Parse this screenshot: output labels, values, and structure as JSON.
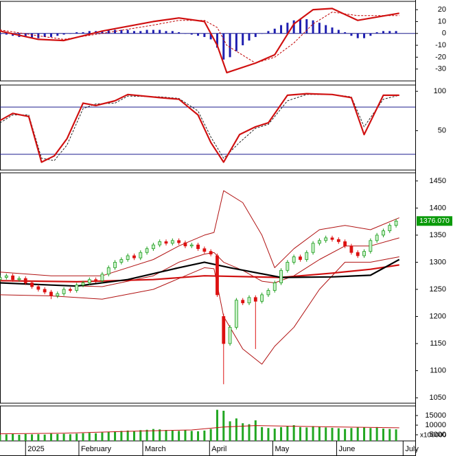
{
  "chart_data": [
    {
      "type": "macd",
      "xlim": [
        0,
        130
      ],
      "ylim": [
        -40,
        27
      ],
      "yticks": [
        20,
        10,
        0,
        -10,
        -20,
        -30
      ],
      "zero_line": true,
      "series": [
        {
          "style": "bar",
          "color": "#1f1fb0",
          "x": [
            0,
            2,
            4,
            6,
            8,
            10,
            12,
            14,
            16,
            18,
            20,
            22,
            24,
            26,
            28,
            30,
            32,
            34,
            36,
            38,
            40,
            42,
            44,
            46,
            48,
            50,
            52,
            54,
            56,
            58,
            60,
            62,
            64,
            66,
            68,
            70,
            72,
            74,
            76,
            78,
            80,
            82,
            84,
            86,
            88,
            90,
            92,
            94,
            96,
            98,
            100,
            102,
            104,
            106,
            108,
            110,
            112,
            114,
            116,
            118,
            120,
            122,
            124
          ],
          "values": [
            -1,
            -1,
            -2,
            -3,
            -3,
            -4,
            -4,
            -3,
            -3,
            -2,
            -1,
            0,
            1,
            1,
            2,
            2,
            2,
            3,
            3,
            3,
            3,
            2,
            2,
            3,
            3,
            3,
            2,
            2,
            1,
            0,
            -1,
            -2,
            -3,
            -5,
            -12,
            -22,
            -20,
            -15,
            -10,
            -6,
            -3,
            0,
            2,
            4,
            7,
            9,
            11,
            12,
            12,
            11,
            9,
            7,
            5,
            3,
            1,
            -2,
            -4,
            -4,
            -2,
            1,
            2,
            2,
            2
          ]
        },
        {
          "style": "dashed",
          "color": "#c00000",
          "width": 1,
          "x": [
            0,
            12,
            20,
            32,
            48,
            56,
            64,
            68,
            71,
            80,
            86,
            92,
            98,
            104,
            112,
            125
          ],
          "values": [
            3,
            -2,
            -5,
            0,
            7,
            11,
            11,
            5,
            -10,
            -25,
            -20,
            -8,
            8,
            18,
            15,
            15
          ]
        },
        {
          "style": "line",
          "color": "#d01010",
          "width": 2.2,
          "x": [
            0,
            12,
            20,
            32,
            48,
            56,
            64,
            68,
            71,
            80,
            86,
            92,
            98,
            104,
            112,
            125
          ],
          "values": [
            2,
            -5,
            -6,
            2,
            10,
            13,
            10,
            -10,
            -33,
            -25,
            -18,
            8,
            20,
            21,
            11,
            17
          ]
        }
      ]
    },
    {
      "type": "oscillator",
      "xlim": [
        0,
        130
      ],
      "ylim": [
        0,
        108
      ],
      "yticks": [
        100,
        50
      ],
      "hlines": [
        80,
        20
      ],
      "hline_color": "#1a1a8c",
      "series": [
        {
          "style": "dashed",
          "color": "#222222",
          "width": 1,
          "x": [
            0,
            4,
            9,
            13,
            17,
            21,
            26,
            30,
            36,
            40,
            50,
            56,
            62,
            66,
            70,
            75,
            80,
            84,
            90,
            96,
            104,
            110,
            114,
            120,
            125
          ],
          "values": [
            60,
            70,
            70,
            15,
            12,
            32,
            78,
            84,
            85,
            94,
            93,
            91,
            75,
            42,
            15,
            35,
            53,
            58,
            88,
            96,
            96,
            93,
            55,
            90,
            95
          ]
        },
        {
          "style": "line",
          "color": "#d01010",
          "width": 2.2,
          "x": [
            0,
            4,
            9,
            13,
            17,
            21,
            26,
            30,
            36,
            40,
            50,
            56,
            62,
            66,
            70,
            75,
            80,
            84,
            90,
            96,
            104,
            110,
            114,
            120,
            125
          ],
          "values": [
            63,
            72,
            68,
            10,
            18,
            40,
            85,
            82,
            88,
            96,
            92,
            90,
            70,
            35,
            10,
            45,
            55,
            60,
            95,
            97,
            96,
            92,
            45,
            95,
            95
          ]
        }
      ]
    },
    {
      "type": "candlestick",
      "xlim": [
        0,
        130
      ],
      "ylim": [
        1040,
        1465
      ],
      "yticks": [
        1450,
        1400,
        1350,
        1300,
        1250,
        1200,
        1150,
        1100,
        1050
      ],
      "last_price": {
        "value": 1376.07,
        "label": "1376.070"
      },
      "last_price_color": "#0a9a0a",
      "series": [
        {
          "style": "line",
          "color": "#b01010",
          "width": 1,
          "x": [
            0,
            16,
            32,
            48,
            56,
            64,
            67,
            70,
            76,
            82,
            86,
            92,
            100,
            108,
            116,
            125
          ],
          "values": [
            1282,
            1275,
            1275,
            1305,
            1330,
            1350,
            1355,
            1432,
            1410,
            1350,
            1290,
            1325,
            1360,
            1368,
            1360,
            1382
          ]
        },
        {
          "style": "line",
          "color": "#b01010",
          "width": 1,
          "x": [
            0,
            16,
            32,
            48,
            56,
            64,
            67,
            70,
            76,
            82,
            86,
            92,
            100,
            108,
            116,
            125
          ],
          "values": [
            1262,
            1258,
            1255,
            1275,
            1300,
            1315,
            1318,
            1300,
            1285,
            1265,
            1262,
            1275,
            1305,
            1330,
            1330,
            1345
          ]
        },
        {
          "style": "line",
          "color": "#b01010",
          "width": 1,
          "x": [
            0,
            16,
            32,
            48,
            56,
            64,
            67,
            70,
            76,
            82,
            86,
            92,
            100,
            108,
            116,
            125
          ],
          "values": [
            1240,
            1238,
            1232,
            1250,
            1270,
            1290,
            1288,
            1200,
            1140,
            1112,
            1145,
            1180,
            1250,
            1300,
            1300,
            1310
          ]
        },
        {
          "style": "line",
          "color": "#d01010",
          "width": 2.2,
          "x": [
            0,
            24,
            48,
            64,
            88,
            104,
            116,
            125
          ],
          "values": [
            1266,
            1264,
            1268,
            1275,
            1272,
            1280,
            1287,
            1295
          ]
        },
        {
          "style": "line",
          "color": "#000000",
          "width": 2.2,
          "x": [
            0,
            16,
            24,
            40,
            56,
            64,
            72,
            88,
            104,
            116,
            125
          ],
          "values": [
            1262,
            1258,
            1256,
            1268,
            1290,
            1300,
            1290,
            1272,
            1273,
            1276,
            1305
          ]
        },
        {
          "style": "candlestick",
          "up_color": "#1a9c1a",
          "down_color": "#dd1111",
          "x": [
            0,
            2,
            4,
            6,
            8,
            10,
            12,
            14,
            16,
            18,
            20,
            22,
            24,
            26,
            28,
            30,
            32,
            34,
            36,
            38,
            40,
            42,
            44,
            46,
            48,
            50,
            52,
            54,
            56,
            58,
            60,
            62,
            64,
            66,
            68,
            70,
            72,
            74,
            76,
            78,
            80,
            82,
            84,
            86,
            88,
            90,
            92,
            94,
            96,
            98,
            100,
            102,
            104,
            106,
            108,
            110,
            112,
            114,
            116,
            118,
            120,
            122,
            124
          ],
          "open": [
            1268,
            1272,
            1275,
            1268,
            1270,
            1262,
            1255,
            1250,
            1245,
            1238,
            1242,
            1250,
            1248,
            1258,
            1262,
            1268,
            1266,
            1278,
            1290,
            1300,
            1305,
            1312,
            1308,
            1318,
            1325,
            1332,
            1338,
            1335,
            1340,
            1336,
            1330,
            1332,
            1325,
            1320,
            1312,
            1200,
            1150,
            1180,
            1230,
            1225,
            1235,
            1228,
            1240,
            1248,
            1262,
            1285,
            1300,
            1310,
            1305,
            1318,
            1335,
            1340,
            1345,
            1342,
            1338,
            1330,
            1318,
            1312,
            1320,
            1340,
            1350,
            1358,
            1368
          ],
          "high": [
            1276,
            1279,
            1279,
            1274,
            1274,
            1266,
            1259,
            1254,
            1249,
            1246,
            1254,
            1254,
            1262,
            1266,
            1272,
            1272,
            1282,
            1294,
            1304,
            1309,
            1316,
            1316,
            1322,
            1329,
            1336,
            1342,
            1342,
            1344,
            1344,
            1340,
            1336,
            1336,
            1329,
            1324,
            1316,
            1205,
            1184,
            1234,
            1234,
            1239,
            1239,
            1244,
            1252,
            1266,
            1289,
            1304,
            1314,
            1314,
            1322,
            1339,
            1344,
            1349,
            1349,
            1346,
            1342,
            1334,
            1322,
            1324,
            1344,
            1354,
            1362,
            1372,
            1380
          ],
          "low": [
            1264,
            1268,
            1264,
            1264,
            1258,
            1251,
            1246,
            1241,
            1232,
            1234,
            1238,
            1244,
            1244,
            1254,
            1258,
            1262,
            1262,
            1274,
            1286,
            1296,
            1301,
            1304,
            1304,
            1314,
            1321,
            1328,
            1331,
            1331,
            1332,
            1326,
            1326,
            1321,
            1316,
            1311,
            1236,
            1075,
            1146,
            1176,
            1221,
            1221,
            1140,
            1224,
            1236,
            1244,
            1258,
            1281,
            1296,
            1301,
            1301,
            1314,
            1331,
            1336,
            1338,
            1334,
            1326,
            1314,
            1308,
            1308,
            1316,
            1336,
            1346,
            1354,
            1364
          ],
          "close": [
            1272,
            1275,
            1268,
            1270,
            1262,
            1255,
            1250,
            1245,
            1238,
            1242,
            1250,
            1248,
            1258,
            1262,
            1268,
            1266,
            1278,
            1290,
            1300,
            1305,
            1312,
            1308,
            1318,
            1325,
            1332,
            1338,
            1335,
            1340,
            1336,
            1330,
            1332,
            1325,
            1320,
            1315,
            1240,
            1150,
            1180,
            1230,
            1225,
            1235,
            1228,
            1240,
            1248,
            1262,
            1285,
            1300,
            1310,
            1305,
            1318,
            1335,
            1340,
            1345,
            1342,
            1338,
            1330,
            1318,
            1312,
            1320,
            1340,
            1350,
            1358,
            1368,
            1376
          ]
        }
      ]
    },
    {
      "type": "volume",
      "xlim": [
        0,
        130
      ],
      "ylim": [
        1800,
        20000
      ],
      "yticks": [
        15000,
        10000,
        5000
      ],
      "y_unit_label": "x100000",
      "xticks": [
        {
          "value": 8,
          "label": "2025"
        },
        {
          "value": 24.7,
          "label": "February"
        },
        {
          "value": 44.7,
          "label": "March"
        },
        {
          "value": 65.6,
          "label": "April"
        },
        {
          "value": 85.4,
          "label": "May"
        },
        {
          "value": 105.4,
          "label": "June"
        },
        {
          "value": 126.2,
          "label": "July"
        }
      ],
      "series": [
        {
          "style": "bar",
          "color": "#22a722",
          "x": [
            0,
            2,
            4,
            6,
            8,
            10,
            12,
            14,
            16,
            18,
            20,
            22,
            24,
            26,
            28,
            30,
            32,
            34,
            36,
            38,
            40,
            42,
            44,
            46,
            48,
            50,
            52,
            54,
            56,
            58,
            60,
            62,
            64,
            66,
            68,
            70,
            72,
            74,
            76,
            78,
            80,
            82,
            84,
            86,
            88,
            90,
            92,
            94,
            96,
            98,
            100,
            102,
            104,
            106,
            108,
            110,
            112,
            114,
            116,
            118,
            120,
            122,
            124
          ],
          "values": [
            5000,
            5200,
            5500,
            5000,
            5400,
            5200,
            5300,
            5100,
            5600,
            5400,
            5500,
            5300,
            5600,
            5800,
            6000,
            5800,
            6200,
            6500,
            6800,
            7000,
            7200,
            6800,
            7400,
            7600,
            8000,
            7800,
            7500,
            7200,
            7000,
            7400,
            7000,
            6800,
            7200,
            8000,
            18000,
            17500,
            12000,
            13500,
            11000,
            10500,
            12500,
            9000,
            8500,
            8200,
            9000,
            9500,
            10000,
            9000,
            8800,
            9500,
            9200,
            8800,
            8600,
            8400,
            8000,
            8500,
            9000,
            8800,
            8500,
            9000,
            8200,
            8000,
            7800
          ]
        },
        {
          "style": "line",
          "color": "#c01010",
          "width": 1,
          "x": [
            0,
            20,
            40,
            60,
            70,
            80,
            100,
            125
          ],
          "values": [
            5500,
            5800,
            6800,
            7500,
            9000,
            9800,
            9200,
            8600
          ]
        }
      ]
    }
  ]
}
